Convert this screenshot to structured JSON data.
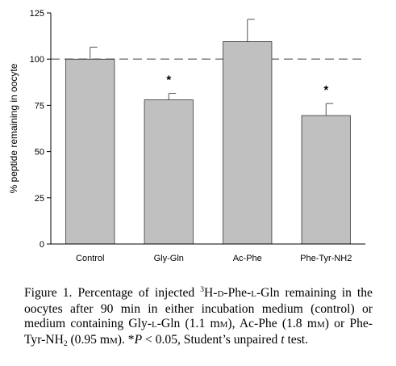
{
  "chart_data": {
    "type": "bar",
    "categories": [
      "Control",
      "Gly-Gln",
      "Ac-Phe",
      "Phe-Tyr-NH2"
    ],
    "values": [
      100,
      78,
      109.5,
      69.5
    ],
    "errors": [
      6.5,
      3.5,
      12,
      6.5
    ],
    "significant": [
      false,
      true,
      false,
      true
    ],
    "significance_marker": "*",
    "reference_line": 100,
    "ylabel": "% peptide remaining in oocyte",
    "xlabel": "",
    "ylim": [
      0,
      125
    ],
    "yticks": [
      0,
      25,
      50,
      75,
      100,
      125
    ],
    "grid": false,
    "colors": {
      "bar": "#c0c0c0",
      "bar_edge": "#000000",
      "reference_line": "#8c8c8c"
    }
  },
  "caption": {
    "prefix": "Figure 1. Percentage of injected ",
    "iso_sup": "3",
    "part1": "H-",
    "d": "D",
    "part2": "-Phe-",
    "l1": "L",
    "part3": "-Gln remaining in the oocytes after 90 min in either incubation medium (control) or medium containing Gly-",
    "l2": "L",
    "part4": "-Gln (1.1 m",
    "m1": "M",
    "part5": "), Ac-Phe (1.8 m",
    "m2": "M",
    "part6": ") or Phe-Tyr-NH",
    "nh_sub": "2",
    "part7": " (0.95 m",
    "m3": "M",
    "part8": "). *",
    "p": "P",
    "part9": " < 0.05, Student’s unpaired ",
    "t": "t",
    "part10": " test."
  }
}
